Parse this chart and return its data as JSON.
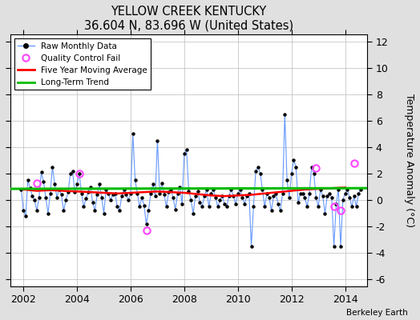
{
  "title": "YELLOW CREEK KENTUCKY",
  "subtitle": "36.604 N, 83.696 W (United States)",
  "ylabel": "Temperature Anomaly (°C)",
  "attribution": "Berkeley Earth",
  "xlim": [
    2001.5,
    2014.83
  ],
  "ylim": [
    -6.5,
    12.5
  ],
  "yticks": [
    -6,
    -4,
    -2,
    0,
    2,
    4,
    6,
    8,
    10,
    12
  ],
  "xticks": [
    2002,
    2004,
    2006,
    2008,
    2010,
    2012,
    2014
  ],
  "bg_color": "#e0e0e0",
  "plot_bg_color": "#ffffff",
  "raw_line_color": "#6699ff",
  "raw_marker_color": "#000000",
  "ma_color": "#ff0000",
  "trend_color": "#00bb00",
  "qc_color": "#ff44ff",
  "monthly_data": [
    [
      2001.917,
      0.8
    ],
    [
      2002.0,
      -0.8
    ],
    [
      2002.083,
      -1.2
    ],
    [
      2002.167,
      1.5
    ],
    [
      2002.25,
      0.9
    ],
    [
      2002.333,
      0.3
    ],
    [
      2002.417,
      0.0
    ],
    [
      2002.5,
      -0.8
    ],
    [
      2002.583,
      0.2
    ],
    [
      2002.667,
      2.1
    ],
    [
      2002.75,
      1.4
    ],
    [
      2002.833,
      0.2
    ],
    [
      2002.917,
      -1.0
    ],
    [
      2003.0,
      0.5
    ],
    [
      2003.083,
      2.5
    ],
    [
      2003.167,
      1.2
    ],
    [
      2003.25,
      0.2
    ],
    [
      2003.333,
      0.8
    ],
    [
      2003.417,
      0.4
    ],
    [
      2003.5,
      -0.8
    ],
    [
      2003.583,
      0.0
    ],
    [
      2003.667,
      0.6
    ],
    [
      2003.75,
      2.0
    ],
    [
      2003.833,
      2.2
    ],
    [
      2003.917,
      0.6
    ],
    [
      2004.0,
      1.2
    ],
    [
      2004.083,
      2.0
    ],
    [
      2004.167,
      0.5
    ],
    [
      2004.25,
      -0.5
    ],
    [
      2004.333,
      0.1
    ],
    [
      2004.417,
      0.6
    ],
    [
      2004.5,
      1.0
    ],
    [
      2004.583,
      -0.2
    ],
    [
      2004.667,
      -0.8
    ],
    [
      2004.75,
      0.4
    ],
    [
      2004.833,
      1.2
    ],
    [
      2004.917,
      0.2
    ],
    [
      2005.0,
      -1.0
    ],
    [
      2005.083,
      0.8
    ],
    [
      2005.167,
      0.5
    ],
    [
      2005.25,
      0.0
    ],
    [
      2005.333,
      0.4
    ],
    [
      2005.417,
      0.5
    ],
    [
      2005.5,
      -0.5
    ],
    [
      2005.583,
      -0.8
    ],
    [
      2005.667,
      0.3
    ],
    [
      2005.75,
      0.8
    ],
    [
      2005.833,
      0.4
    ],
    [
      2005.917,
      0.0
    ],
    [
      2006.0,
      0.5
    ],
    [
      2006.083,
      5.0
    ],
    [
      2006.167,
      1.5
    ],
    [
      2006.25,
      0.5
    ],
    [
      2006.333,
      -0.5
    ],
    [
      2006.417,
      0.2
    ],
    [
      2006.5,
      -0.4
    ],
    [
      2006.583,
      -1.8
    ],
    [
      2006.667,
      -0.8
    ],
    [
      2006.75,
      0.5
    ],
    [
      2006.833,
      1.2
    ],
    [
      2006.917,
      0.3
    ],
    [
      2007.0,
      4.5
    ],
    [
      2007.083,
      0.5
    ],
    [
      2007.167,
      1.3
    ],
    [
      2007.25,
      0.4
    ],
    [
      2007.333,
      -0.5
    ],
    [
      2007.417,
      0.6
    ],
    [
      2007.5,
      0.8
    ],
    [
      2007.583,
      0.2
    ],
    [
      2007.667,
      -0.7
    ],
    [
      2007.75,
      0.5
    ],
    [
      2007.833,
      1.0
    ],
    [
      2007.917,
      -0.3
    ],
    [
      2008.0,
      3.5
    ],
    [
      2008.083,
      3.8
    ],
    [
      2008.167,
      0.7
    ],
    [
      2008.25,
      0.0
    ],
    [
      2008.333,
      -1.0
    ],
    [
      2008.417,
      0.3
    ],
    [
      2008.5,
      0.7
    ],
    [
      2008.583,
      -0.2
    ],
    [
      2008.667,
      -0.5
    ],
    [
      2008.75,
      0.3
    ],
    [
      2008.833,
      0.8
    ],
    [
      2008.917,
      -0.5
    ],
    [
      2009.0,
      0.5
    ],
    [
      2009.083,
      0.8
    ],
    [
      2009.167,
      0.2
    ],
    [
      2009.25,
      -0.5
    ],
    [
      2009.333,
      0.0
    ],
    [
      2009.417,
      0.3
    ],
    [
      2009.5,
      -0.3
    ],
    [
      2009.583,
      -0.5
    ],
    [
      2009.667,
      0.3
    ],
    [
      2009.75,
      0.8
    ],
    [
      2009.833,
      0.3
    ],
    [
      2009.917,
      -0.3
    ],
    [
      2010.0,
      0.5
    ],
    [
      2010.083,
      0.8
    ],
    [
      2010.167,
      0.2
    ],
    [
      2010.25,
      -0.3
    ],
    [
      2010.333,
      0.3
    ],
    [
      2010.417,
      0.5
    ],
    [
      2010.5,
      -3.5
    ],
    [
      2010.583,
      -0.5
    ],
    [
      2010.667,
      2.2
    ],
    [
      2010.75,
      2.5
    ],
    [
      2010.833,
      2.0
    ],
    [
      2010.917,
      0.8
    ],
    [
      2011.0,
      -0.5
    ],
    [
      2011.083,
      0.5
    ],
    [
      2011.167,
      0.2
    ],
    [
      2011.25,
      -0.8
    ],
    [
      2011.333,
      0.3
    ],
    [
      2011.417,
      0.5
    ],
    [
      2011.5,
      -0.3
    ],
    [
      2011.583,
      -0.8
    ],
    [
      2011.667,
      0.5
    ],
    [
      2011.75,
      6.5
    ],
    [
      2011.833,
      1.5
    ],
    [
      2011.917,
      0.2
    ],
    [
      2012.0,
      2.0
    ],
    [
      2012.083,
      3.0
    ],
    [
      2012.167,
      2.5
    ],
    [
      2012.25,
      -0.2
    ],
    [
      2012.333,
      0.5
    ],
    [
      2012.417,
      0.5
    ],
    [
      2012.5,
      0.2
    ],
    [
      2012.583,
      -0.5
    ],
    [
      2012.667,
      0.5
    ],
    [
      2012.75,
      2.5
    ],
    [
      2012.833,
      2.0
    ],
    [
      2012.917,
      0.2
    ],
    [
      2013.0,
      -0.5
    ],
    [
      2013.083,
      0.8
    ],
    [
      2013.167,
      0.3
    ],
    [
      2013.25,
      -1.0
    ],
    [
      2013.333,
      0.3
    ],
    [
      2013.417,
      0.5
    ],
    [
      2013.5,
      0.2
    ],
    [
      2013.583,
      -3.5
    ],
    [
      2013.667,
      -0.3
    ],
    [
      2013.75,
      0.8
    ],
    [
      2013.833,
      -3.5
    ],
    [
      2013.917,
      0.0
    ],
    [
      2014.0,
      0.5
    ],
    [
      2014.083,
      0.8
    ],
    [
      2014.167,
      0.2
    ],
    [
      2014.25,
      -0.5
    ],
    [
      2014.333,
      0.3
    ],
    [
      2014.417,
      -0.5
    ],
    [
      2014.5,
      0.5
    ],
    [
      2014.583,
      0.8
    ]
  ],
  "qc_fail_points": [
    [
      2002.5,
      1.3
    ],
    [
      2004.083,
      2.0
    ],
    [
      2006.583,
      -2.3
    ],
    [
      2012.917,
      2.4
    ],
    [
      2013.583,
      -0.5
    ],
    [
      2013.833,
      -0.8
    ],
    [
      2014.333,
      2.8
    ]
  ],
  "moving_avg": [
    [
      2002.0,
      0.8
    ],
    [
      2002.5,
      0.7
    ],
    [
      2003.0,
      0.75
    ],
    [
      2003.5,
      0.7
    ],
    [
      2004.0,
      0.65
    ],
    [
      2004.5,
      0.6
    ],
    [
      2005.0,
      0.55
    ],
    [
      2005.5,
      0.5
    ],
    [
      2006.0,
      0.55
    ],
    [
      2006.5,
      0.6
    ],
    [
      2007.0,
      0.65
    ],
    [
      2007.5,
      0.6
    ],
    [
      2008.0,
      0.55
    ],
    [
      2008.5,
      0.45
    ],
    [
      2009.0,
      0.35
    ],
    [
      2009.5,
      0.3
    ],
    [
      2010.0,
      0.35
    ],
    [
      2010.5,
      0.4
    ],
    [
      2011.0,
      0.5
    ],
    [
      2011.5,
      0.6
    ],
    [
      2012.0,
      0.7
    ],
    [
      2012.5,
      0.8
    ],
    [
      2013.0,
      0.85
    ],
    [
      2013.5,
      0.9
    ],
    [
      2014.0,
      0.95
    ]
  ],
  "trend_line": [
    [
      2001.5,
      0.85
    ],
    [
      2014.83,
      0.9
    ]
  ]
}
